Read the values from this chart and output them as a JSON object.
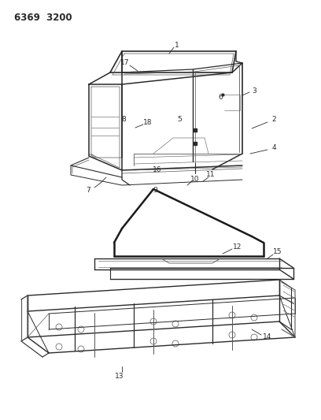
{
  "title_code": "6369  3200",
  "bg_color": "#ffffff",
  "line_color": "#2a2a2a",
  "light_line_color": "#555555",
  "figsize": [
    4.08,
    5.33
  ],
  "dpi": 100,
  "label_fontsize": 6.5,
  "title_fontsize": 8.5
}
